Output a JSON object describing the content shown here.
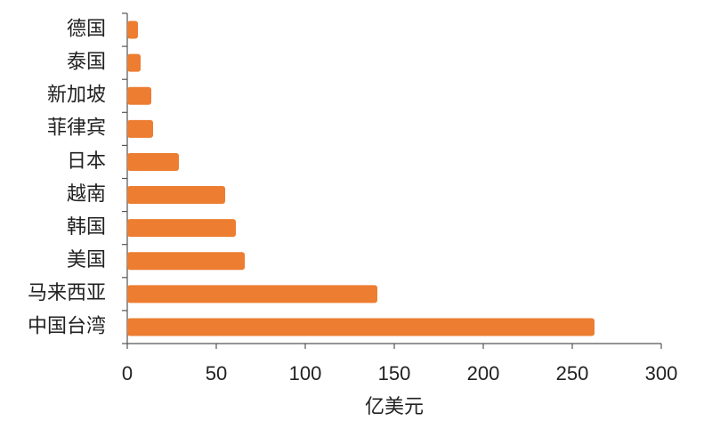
{
  "chart_data": {
    "type": "bar",
    "orientation": "horizontal",
    "categories": [
      "德国",
      "泰国",
      "新加坡",
      "菲律宾",
      "日本",
      "越南",
      "韩国",
      "美国",
      "马来西亚",
      "中国台湾"
    ],
    "values": [
      6,
      7.5,
      13.5,
      14.5,
      29,
      55,
      61,
      66,
      140.5,
      262.5
    ],
    "color": "#ed7d31",
    "x_label": "亿美元",
    "xlim": [
      0,
      300
    ],
    "xticks": [
      0,
      50,
      100,
      150,
      200,
      250,
      300
    ]
  }
}
